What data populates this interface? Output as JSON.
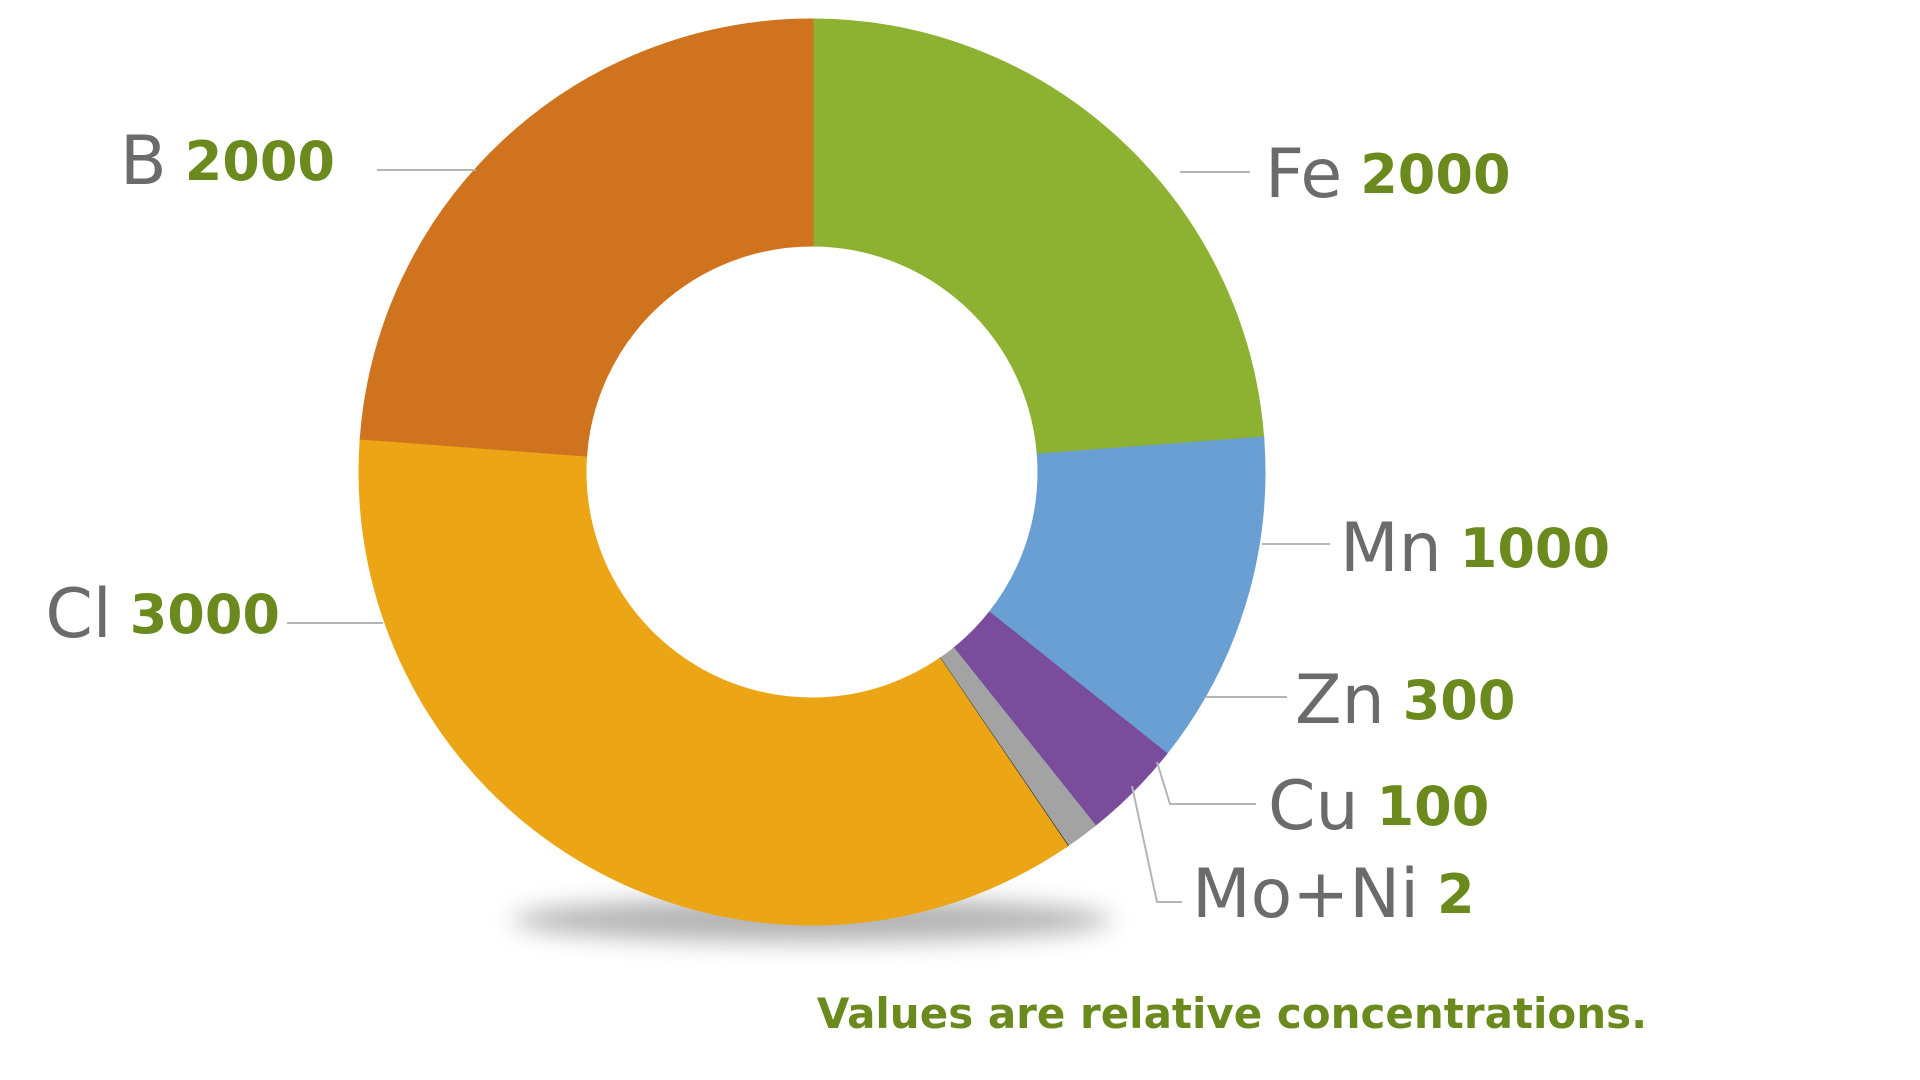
{
  "chart_data": {
    "type": "donut",
    "categories": [
      "Fe",
      "Mn",
      "Zn",
      "Cu",
      "Mo+Ni",
      "Cl",
      "B"
    ],
    "values": [
      2000,
      1000,
      300,
      100,
      2,
      3000,
      2000
    ],
    "colors": [
      "#8db130",
      "#6a9fd4",
      "#7a4c9c",
      "#a3a3a3",
      "#1e2e3a",
      "#eba515",
      "#d0731e"
    ],
    "caption": "Values are relative concentrations."
  }
}
